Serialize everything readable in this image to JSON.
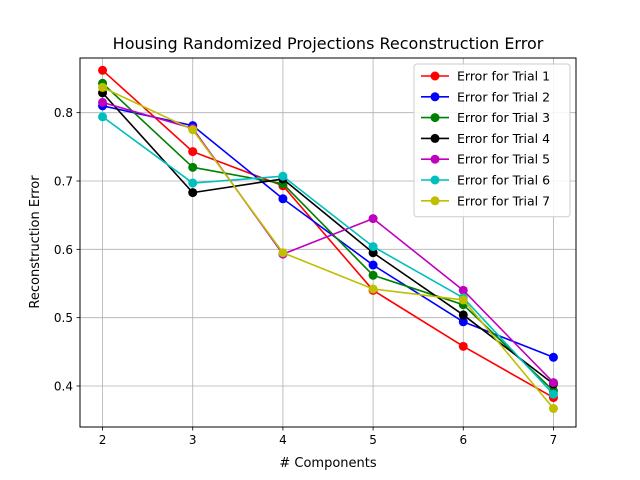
{
  "chart_data": {
    "type": "line",
    "title": "Housing Randomized Projections Reconstruction Error",
    "xlabel": "# Components",
    "ylabel": "Reconstruction Error",
    "x": [
      2,
      3,
      4,
      5,
      6,
      7
    ],
    "xlim": [
      1.75,
      7.25
    ],
    "ylim": [
      0.34,
      0.88
    ],
    "xticks": [
      "2",
      "3",
      "4",
      "5",
      "6",
      "7"
    ],
    "yticks": [
      "0.4",
      "0.5",
      "0.6",
      "0.7",
      "0.8"
    ],
    "grid": true,
    "legend_position": "top-right",
    "series": [
      {
        "name": "Error for Trial 1",
        "color": "#ff0000",
        "values": [
          0.862,
          0.743,
          0.693,
          0.54,
          0.458,
          0.383
        ]
      },
      {
        "name": "Error for Trial 2",
        "color": "#0000ff",
        "values": [
          0.81,
          0.781,
          0.674,
          0.577,
          0.494,
          0.442
        ]
      },
      {
        "name": "Error for Trial 3",
        "color": "#008000",
        "values": [
          0.843,
          0.72,
          0.696,
          0.562,
          0.519,
          0.393
        ]
      },
      {
        "name": "Error for Trial 4",
        "color": "#000000",
        "values": [
          0.829,
          0.683,
          0.703,
          0.595,
          0.504,
          0.403
        ]
      },
      {
        "name": "Error for Trial 5",
        "color": "#bf00bf",
        "values": [
          0.815,
          0.777,
          0.593,
          0.645,
          0.54,
          0.405
        ]
      },
      {
        "name": "Error for Trial 6",
        "color": "#00bfbf",
        "values": [
          0.794,
          0.697,
          0.707,
          0.604,
          0.529,
          0.388
        ]
      },
      {
        "name": "Error for Trial 7",
        "color": "#bfbf00",
        "values": [
          0.837,
          0.775,
          0.595,
          0.542,
          0.526,
          0.367
        ]
      }
    ]
  }
}
